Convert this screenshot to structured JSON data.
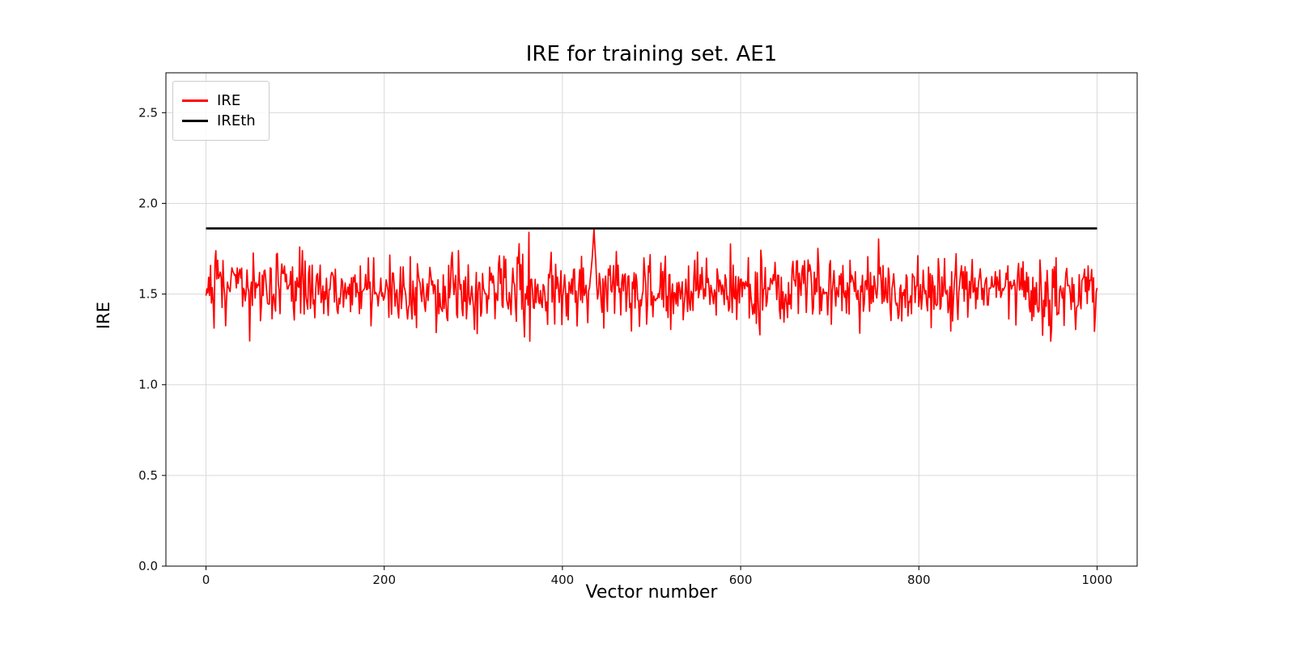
{
  "chart_data": {
    "type": "line",
    "title": "IRE for training set. AE1",
    "xlabel": "Vector number",
    "ylabel": "IRE",
    "x_ticks": [
      0,
      200,
      400,
      600,
      800,
      1000
    ],
    "y_ticks": [
      0.0,
      0.5,
      1.0,
      1.5,
      2.0,
      2.5
    ],
    "xlim": [
      -45,
      1045
    ],
    "ylim": [
      0,
      2.72
    ],
    "grid": true,
    "grid_color": "#d9d9d9",
    "legend": {
      "position": "upper left",
      "entries": [
        {
          "label": "IRE",
          "color": "#ff0000"
        },
        {
          "label": "IREth",
          "color": "#000000"
        }
      ]
    },
    "series": [
      {
        "name": "IRE",
        "type": "noise",
        "color": "#ff0000",
        "x_start": 0,
        "x_end": 1000,
        "n_points": 1000,
        "mean": 1.53,
        "std": 0.09,
        "min": 1.24,
        "max": 1.84,
        "seed": 7,
        "peak": {
          "x": 435,
          "value": 1.86
        }
      },
      {
        "name": "IREth",
        "type": "hline",
        "color": "#000000",
        "value": 1.862,
        "x_start": 0,
        "x_end": 1000
      }
    ]
  }
}
